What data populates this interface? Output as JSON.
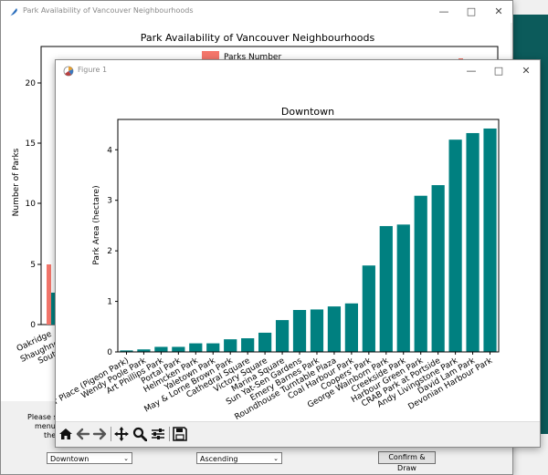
{
  "colors": {
    "desktop": "#0c5b5b",
    "bg_bar": "#f4766b",
    "fg_bar": "#008080"
  },
  "main_window": {
    "title": "Park Availability of Vancouver Neighbourhoods",
    "icon": "feather-icon",
    "chart_title": "Park Availability of Vancouver Neighbourhoods",
    "legend": "Parks Number",
    "ylabel": "Number of Parks",
    "yticks": [
      "0",
      "5",
      "10",
      "15",
      "20"
    ],
    "xticks": [
      "Oakridge",
      "Shaughne",
      "South"
    ],
    "instruction_lines": [
      "Please sel",
      "menu to s",
      "the"
    ],
    "neighbourhood_select": "Downtown",
    "order_select": "Ascending",
    "confirm_button": "Confirm & Draw"
  },
  "figure_window": {
    "title": "Figure 1",
    "icon": "matplotlib-icon",
    "toolbar": [
      "home-icon",
      "back-arrow-icon",
      "forward-arrow-icon",
      "pan-icon",
      "zoom-icon",
      "configure-icon",
      "save-icon"
    ]
  },
  "chart_data": {
    "type": "bar",
    "title": "Downtown",
    "xlabel": "",
    "ylabel": "Park Area (hectare)",
    "ylim": [
      0,
      4.6
    ],
    "yticks": [
      0,
      1,
      2,
      3,
      4
    ],
    "yticks_labels": [
      "0",
      "1",
      "2",
      "3",
      "4"
    ],
    "grid": false,
    "categories": [
      "Cathedral Place (Pigeon Park)",
      "Wendy Poole Park",
      "Art Phillips Park",
      "Portal Park",
      "Helmcken Park",
      "Yaletown Park",
      "May & Lorne Brown Park",
      "Cathedral Square",
      "Victory Square",
      "Marina Square",
      "Sun Yat-Sen Gardens",
      "Emery Barnes Park",
      "Roundhouse Turntable Plaza",
      "Coal Harbour Park",
      "Coopers' Park",
      "George Wainborn Park",
      "Creekside Park",
      "Harbour Green Park",
      "CRAB Park at Portside",
      "Andy Livingstone Park",
      "David Lam Park",
      "Devonian Harbour Park"
    ],
    "tick_labels": [
      "eer Place (Pigeon Park)",
      "Wendy Poole Park",
      "Art Phillips Park",
      "Portal Park",
      "Helmcken Park",
      "Yaletown Park",
      "May & Lorne Brown Park",
      "Cathedral Square",
      "Victory Square",
      "Marina Square",
      "Sun Yat-Sen Gardens",
      "Emery Barnes Park",
      "Roundhouse Turntable Plaza",
      "Coal Harbour Park",
      "Coopers' Park",
      "George Wainborn Park",
      "Creekside Park",
      "Harbour Green Park",
      "CRAB Park at Portside",
      "Andy Livingstone Park",
      "David Lam Park",
      "Devonian Harbour Park"
    ],
    "values": [
      0.03,
      0.05,
      0.1,
      0.1,
      0.17,
      0.17,
      0.25,
      0.27,
      0.38,
      0.63,
      0.83,
      0.84,
      0.9,
      0.96,
      1.71,
      2.49,
      2.52,
      3.09,
      3.3,
      4.2,
      4.33,
      4.42
    ]
  }
}
